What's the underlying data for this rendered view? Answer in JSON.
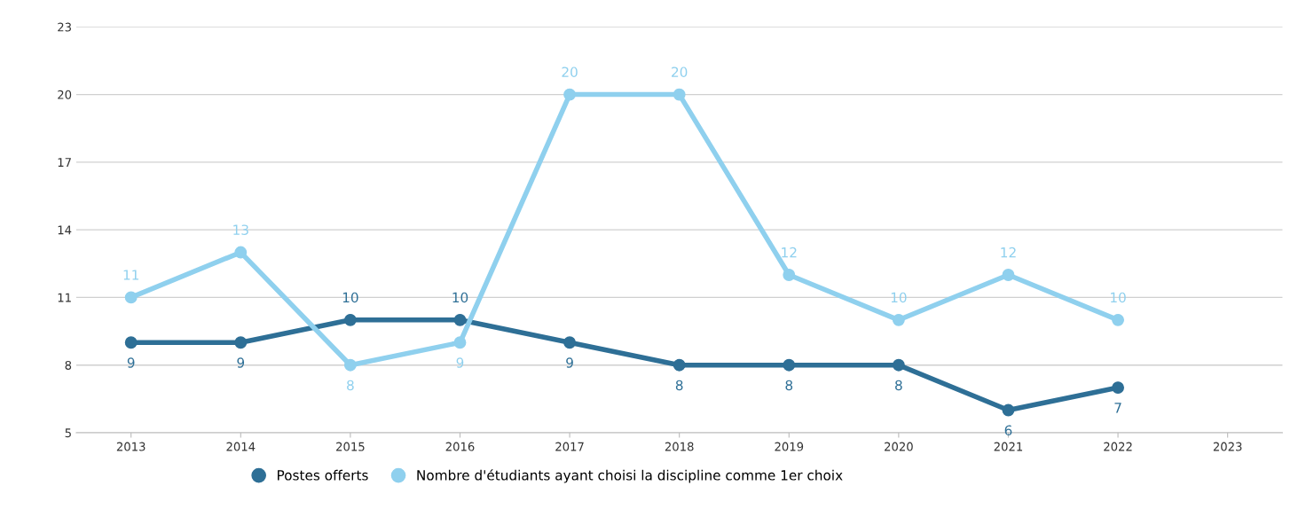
{
  "chart_data": {
    "type": "line",
    "categories": [
      "2013",
      "2014",
      "2015",
      "2016",
      "2017",
      "2018",
      "2019",
      "2020",
      "2021",
      "2022",
      "2023"
    ],
    "series": [
      {
        "name": "Postes offerts",
        "color": "#2e6f96",
        "values": [
          9,
          9,
          10,
          10,
          9,
          8,
          8,
          8,
          6,
          7,
          null
        ]
      },
      {
        "name": "Nombre d'étudiants ayant choisi la discipline comme 1er choix",
        "color": "#8fd0ee",
        "values": [
          11,
          13,
          8,
          9,
          20,
          20,
          12,
          10,
          12,
          10,
          null
        ]
      }
    ],
    "ylim": [
      5,
      23
    ],
    "yticks": [
      5,
      8,
      11,
      14,
      17,
      20,
      23
    ],
    "grid": "y",
    "legend": "bottom",
    "marker": "circle",
    "line_style": "solid",
    "data_labels": true
  }
}
